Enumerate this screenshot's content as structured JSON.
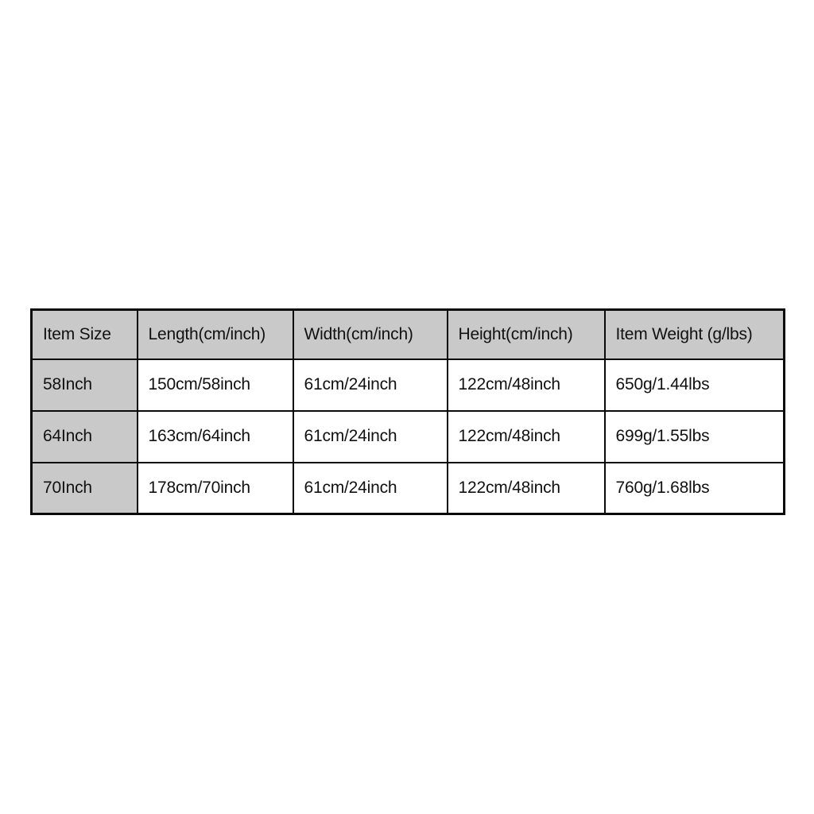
{
  "chart_data": {
    "type": "table",
    "title": "",
    "columns": [
      "Item Size",
      "Length(cm/inch)",
      "Width(cm/inch)",
      "Height(cm/inch)",
      "Item Weight (g/lbs)"
    ],
    "rows": [
      [
        "58Inch",
        "150cm/58inch",
        "61cm/24inch",
        "122cm/48inch",
        "650g/1.44lbs"
      ],
      [
        "64Inch",
        "163cm/64inch",
        "61cm/24inch",
        "122cm/48inch",
        "699g/1.55lbs"
      ],
      [
        "70Inch",
        "178cm/70inch",
        "61cm/24inch",
        "122cm/48inch",
        "760g/1.68lbs"
      ]
    ],
    "layout": {
      "grid": "on",
      "header_row_shaded": true,
      "first_column_shaded": true
    }
  },
  "colors": {
    "header_bg": "#c9c9c9",
    "row_label_bg": "#c9c9c9",
    "cell_bg": "#ffffff",
    "border": "#0a0a0a",
    "text": "#111111",
    "page_bg": "#ffffff"
  }
}
